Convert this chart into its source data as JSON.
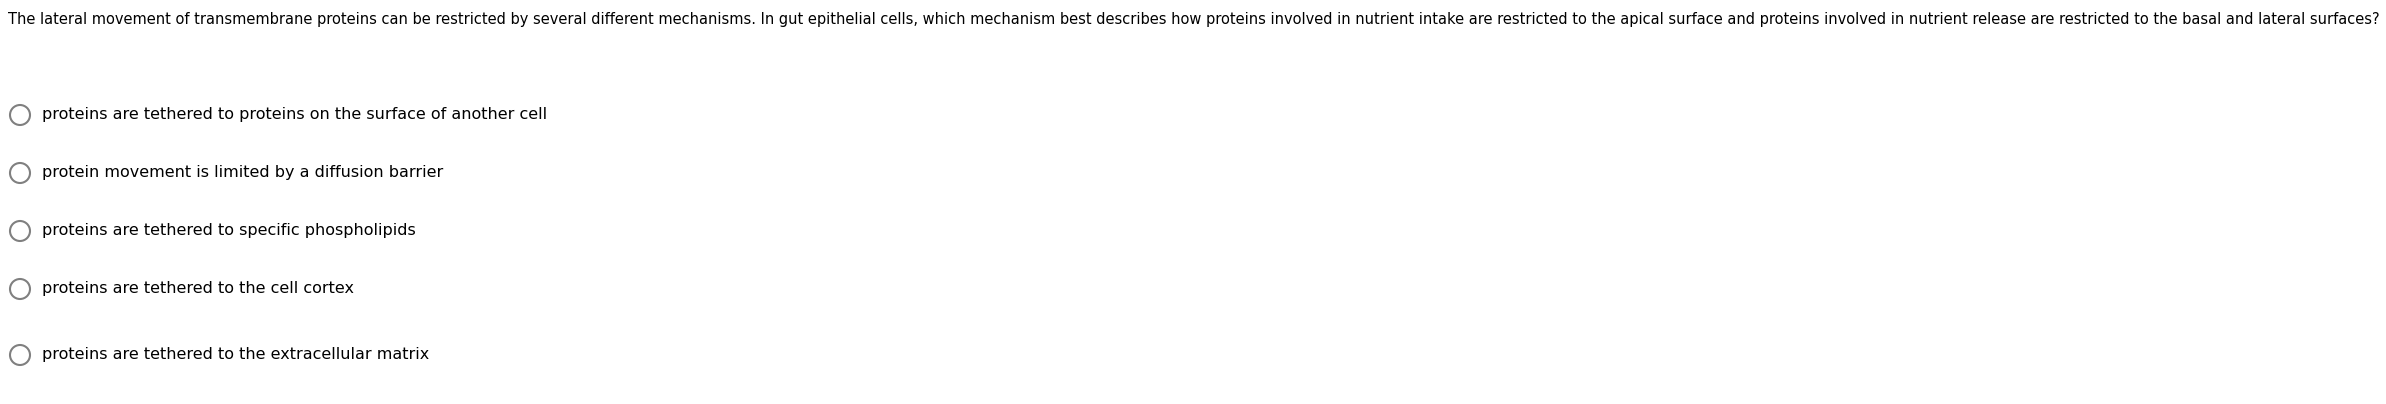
{
  "question": "The lateral movement of transmembrane proteins can be restricted by several different mechanisms. In gut epithelial cells, which mechanism best describes how proteins involved in nutrient intake are restricted to the apical surface and proteins involved in nutrient release are restricted to the basal and lateral surfaces?",
  "options": [
    "proteins are tethered to proteins on the surface of another cell",
    "protein movement is limited by a diffusion barrier",
    "proteins are tethered to specific phospholipids",
    "proteins are tethered to the cell cortex",
    "proteins are tethered to the extracellular matrix"
  ],
  "background_color": "#ffffff",
  "text_color": "#000000",
  "font_size_question": 10.5,
  "font_size_options": 11.5,
  "circle_color": "#808080",
  "circle_linewidth": 1.5
}
